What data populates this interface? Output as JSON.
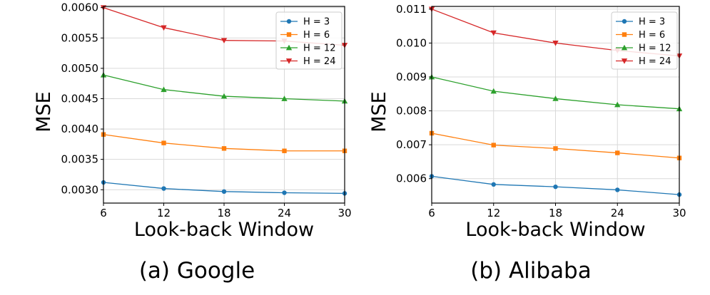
{
  "chart_data": [
    {
      "type": "line",
      "caption": "(a) Google",
      "xlabel": "Look-back Window",
      "ylabel": "MSE",
      "x": [
        6,
        12,
        18,
        24,
        30
      ],
      "xlim": [
        6,
        30
      ],
      "ylim": [
        0.00278,
        0.00602
      ],
      "yticks": [
        "0.0030",
        "0.0035",
        "0.0040",
        "0.0045",
        "0.0050",
        "0.0055",
        "0.0060"
      ],
      "ytick_values": [
        0.003,
        0.0035,
        0.004,
        0.0045,
        0.005,
        0.0055,
        0.006
      ],
      "grid": true,
      "legend_position": "top-right",
      "series": [
        {
          "name": "H = 3",
          "color": "#1f77b4",
          "marker": "circle",
          "values": [
            0.00312,
            0.00302,
            0.00297,
            0.00295,
            0.00294
          ]
        },
        {
          "name": "H = 6",
          "color": "#ff7f0e",
          "marker": "square",
          "values": [
            0.00391,
            0.00377,
            0.00368,
            0.00364,
            0.00364
          ]
        },
        {
          "name": "H = 12",
          "color": "#2ca02c",
          "marker": "triangle-up",
          "values": [
            0.00489,
            0.00465,
            0.00454,
            0.0045,
            0.00446
          ]
        },
        {
          "name": "H = 24",
          "color": "#d62728",
          "marker": "triangle-down",
          "values": [
            0.006,
            0.00567,
            0.00546,
            0.00545,
            0.00538
          ]
        }
      ]
    },
    {
      "type": "line",
      "caption": "(b) Alibaba",
      "xlabel": "Look-back Window",
      "ylabel": "MSE",
      "x": [
        6,
        12,
        18,
        24,
        30
      ],
      "xlim": [
        6,
        30
      ],
      "ylim": [
        0.00528,
        0.01108
      ],
      "yticks": [
        "0.006",
        "0.007",
        "0.008",
        "0.009",
        "0.010",
        "0.011"
      ],
      "ytick_values": [
        0.006,
        0.007,
        0.008,
        0.009,
        0.01,
        0.011
      ],
      "grid": true,
      "legend_position": "top-right",
      "series": [
        {
          "name": "H = 3",
          "color": "#1f77b4",
          "marker": "circle",
          "values": [
            0.00607,
            0.00583,
            0.00576,
            0.00567,
            0.00553
          ]
        },
        {
          "name": "H = 6",
          "color": "#ff7f0e",
          "marker": "square",
          "values": [
            0.00734,
            0.00699,
            0.00689,
            0.00676,
            0.00661
          ]
        },
        {
          "name": "H = 12",
          "color": "#2ca02c",
          "marker": "triangle-up",
          "values": [
            0.009,
            0.00858,
            0.00836,
            0.00818,
            0.00806
          ]
        },
        {
          "name": "H = 24",
          "color": "#d62728",
          "marker": "triangle-down",
          "values": [
            0.011,
            0.0103,
            0.01,
            0.00978,
            0.00962
          ]
        }
      ]
    }
  ]
}
